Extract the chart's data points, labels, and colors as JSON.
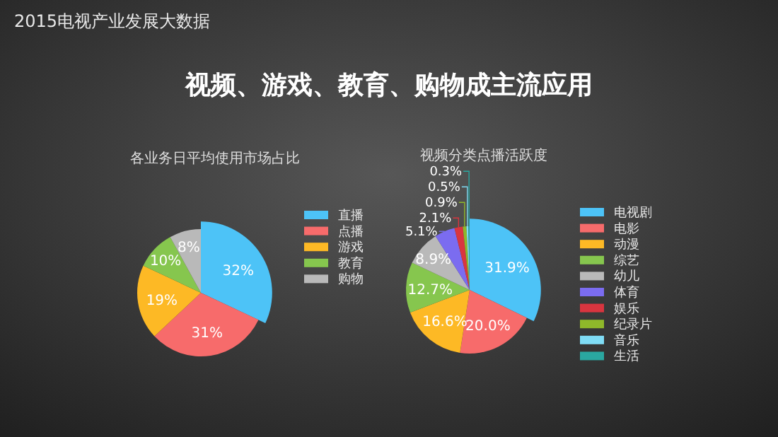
{
  "chart_data": [
    {
      "type": "other",
      "title": "2015电视产业发展大数据",
      "subtitle": "视频、游戏、教育、购物成主流应用"
    },
    {
      "type": "pie",
      "title": "各业务日平均使用市场占比",
      "categories": [
        "直播",
        "点播",
        "游戏",
        "教育",
        "购物"
      ],
      "values": [
        32,
        31,
        19,
        10,
        8
      ],
      "value_labels": [
        "32%",
        "31%",
        "19%",
        "10%",
        "8%"
      ],
      "colors": [
        "#4dc3f7",
        "#f76b6b",
        "#fdb925",
        "#86c64e",
        "#b9b9b9"
      ],
      "legend": "right"
    },
    {
      "type": "pie",
      "title": "视频分类点播活跃度",
      "categories": [
        "电视剧",
        "电影",
        "动漫",
        "综艺",
        "幼儿",
        "体育",
        "娱乐",
        "纪录片",
        "音乐",
        "生活"
      ],
      "values": [
        31.9,
        20.0,
        16.6,
        12.7,
        8.9,
        5.1,
        2.1,
        0.9,
        0.5,
        0.3
      ],
      "value_labels": [
        "31.9%",
        "20.0%",
        "16.6%",
        "12.7%",
        "8.9%",
        "5.1%",
        "2.1%",
        "0.9%",
        "0.5%",
        "0.3%"
      ],
      "colors": [
        "#4dc3f7",
        "#f76b6b",
        "#fdb925",
        "#86c64e",
        "#b9b9b9",
        "#7b6cf0",
        "#d9353f",
        "#8fb82a",
        "#7fdcf5",
        "#2aa7a0"
      ],
      "legend": "right"
    }
  ]
}
